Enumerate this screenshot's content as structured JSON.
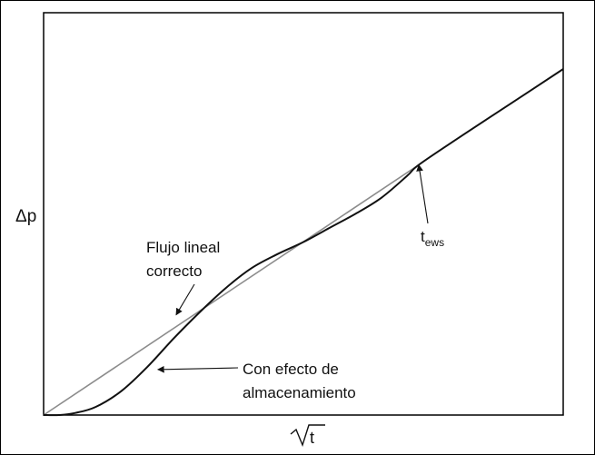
{
  "chart_data": {
    "type": "line",
    "title": "",
    "xlabel": "√t",
    "ylabel": "Δp",
    "xlabel_parts": {
      "radical": "√",
      "symbol": "t"
    },
    "xlim": [
      0,
      1
    ],
    "ylim": [
      0,
      1
    ],
    "axis_ticks": false,
    "grid": false,
    "legend": "none",
    "series": [
      {
        "name": "Flujo lineal correcto",
        "color": "#8c8c8c",
        "x": [
          0,
          0.722
        ],
        "y": [
          0,
          0.622
        ]
      },
      {
        "name": "Con efecto de almacenamiento",
        "color": "#111111",
        "x": [
          0,
          0.03,
          0.06,
          0.1,
          0.15,
          0.2,
          0.25,
          0.3,
          0.35,
          0.4,
          0.45,
          0.5,
          0.55,
          0.6,
          0.65,
          0.7,
          0.722,
          0.8,
          0.9,
          1.0
        ],
        "y": [
          0,
          0,
          0.005,
          0.02,
          0.06,
          0.12,
          0.19,
          0.255,
          0.315,
          0.365,
          0.4,
          0.43,
          0.465,
          0.5,
          0.54,
          0.595,
          0.622,
          0.69,
          0.775,
          0.86
        ]
      }
    ],
    "annotations": [
      {
        "id": "linear",
        "lines": [
          "Flujo lineal",
          "correcto"
        ],
        "target_x": 0.255,
        "target_y": 0.249
      },
      {
        "id": "storage",
        "lines": [
          "Con efecto de",
          "almacenamiento"
        ],
        "target_x": 0.22,
        "target_y": 0.113
      },
      {
        "id": "tews",
        "text": "t",
        "subscript": "ews",
        "target_x": 0.722,
        "target_y": 0.622
      }
    ]
  }
}
